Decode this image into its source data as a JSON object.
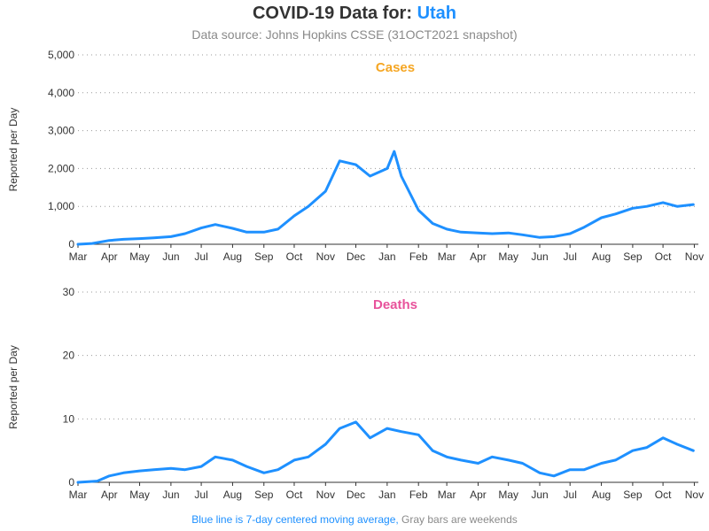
{
  "header": {
    "title_prefix": "COVID-19 Data for:",
    "state": "Utah",
    "subtitle": "Data source: Johns Hopkins CSSE (31OCT2021 snapshot)"
  },
  "footnote": {
    "blue_text": "Blue line is 7-day centered moving average,",
    "gray_text": " Gray bars are weekends"
  },
  "colors": {
    "cases": "#f5a623",
    "cases_bar": "#f7c77a",
    "deaths": "#e8529b",
    "deaths_bar": "#ee7fb6",
    "average": "#1e90ff",
    "marker": "#777777"
  },
  "chart_data": [
    {
      "type": "bar",
      "title": "Cases",
      "ylabel": "Reported per Day",
      "ylim": [
        0,
        5000
      ],
      "yticks": [
        "0",
        "1,000",
        "2,000",
        "3,000",
        "4,000",
        "5,000"
      ],
      "ytick_values": [
        0,
        1000,
        2000,
        3000,
        4000,
        5000
      ],
      "xlim": [
        "2020-03-01",
        "2021-11-05"
      ],
      "xticks": [
        "Mar",
        "Apr",
        "May",
        "Jun",
        "Jul",
        "Aug",
        "Sep",
        "Oct",
        "Nov",
        "Dec",
        "Jan",
        "Feb",
        "Mar",
        "Apr",
        "May",
        "Jun",
        "Jul",
        "Aug",
        "Sep",
        "Oct",
        "Nov"
      ],
      "xtick_dates": [
        "2020-03-01",
        "2020-04-01",
        "2020-05-01",
        "2020-06-01",
        "2020-07-01",
        "2020-08-01",
        "2020-09-01",
        "2020-10-01",
        "2020-11-01",
        "2020-12-01",
        "2021-01-01",
        "2021-02-01",
        "2021-03-01",
        "2021-04-01",
        "2021-05-01",
        "2021-06-01",
        "2021-07-01",
        "2021-08-01",
        "2021-09-01",
        "2021-10-01",
        "2021-11-01"
      ],
      "grid": "horizontal-dotted",
      "series": [
        {
          "name": "7-day centered moving average",
          "x": [
            "2020-03-01",
            "2020-03-15",
            "2020-04-01",
            "2020-04-15",
            "2020-05-01",
            "2020-05-15",
            "2020-06-01",
            "2020-06-15",
            "2020-07-01",
            "2020-07-15",
            "2020-08-01",
            "2020-08-15",
            "2020-09-01",
            "2020-09-15",
            "2020-10-01",
            "2020-10-15",
            "2020-11-01",
            "2020-11-15",
            "2020-12-01",
            "2020-12-15",
            "2021-01-01",
            "2021-01-08",
            "2021-01-15",
            "2021-02-01",
            "2021-02-15",
            "2021-03-01",
            "2021-03-15",
            "2021-04-01",
            "2021-04-15",
            "2021-05-01",
            "2021-05-15",
            "2021-06-01",
            "2021-06-15",
            "2021-07-01",
            "2021-07-15",
            "2021-08-01",
            "2021-08-15",
            "2021-09-01",
            "2021-09-15",
            "2021-10-01",
            "2021-10-15",
            "2021-10-31"
          ],
          "values": [
            0,
            20,
            100,
            130,
            150,
            170,
            200,
            280,
            430,
            520,
            420,
            320,
            320,
            400,
            750,
            1000,
            1400,
            2200,
            2100,
            1800,
            2000,
            2450,
            1800,
            900,
            550,
            400,
            320,
            300,
            280,
            300,
            250,
            180,
            200,
            280,
            450,
            700,
            800,
            950,
            1000,
            1100,
            1000,
            1050
          ]
        }
      ]
    },
    {
      "type": "bar",
      "title": "Deaths",
      "ylabel": "Reported per Day",
      "ylim": [
        0,
        30
      ],
      "yticks": [
        "0",
        "10",
        "20",
        "30"
      ],
      "ytick_values": [
        0,
        10,
        20,
        30
      ],
      "xlim": [
        "2020-03-01",
        "2021-11-05"
      ],
      "xticks": [
        "Mar",
        "Apr",
        "May",
        "Jun",
        "Jul",
        "Aug",
        "Sep",
        "Oct",
        "Nov",
        "Dec",
        "Jan",
        "Feb",
        "Mar",
        "Apr",
        "May",
        "Jun",
        "Jul",
        "Aug",
        "Sep",
        "Oct",
        "Nov"
      ],
      "xtick_dates": [
        "2020-03-01",
        "2020-04-01",
        "2020-05-01",
        "2020-06-01",
        "2020-07-01",
        "2020-08-01",
        "2020-09-01",
        "2020-10-01",
        "2020-11-01",
        "2020-12-01",
        "2021-01-01",
        "2021-02-01",
        "2021-03-01",
        "2021-04-01",
        "2021-05-01",
        "2021-06-01",
        "2021-07-01",
        "2021-08-01",
        "2021-09-01",
        "2021-10-01",
        "2021-11-01"
      ],
      "grid": "horizontal-dotted",
      "series": [
        {
          "name": "7-day centered moving average",
          "x": [
            "2020-03-01",
            "2020-03-20",
            "2020-04-01",
            "2020-04-15",
            "2020-05-01",
            "2020-05-15",
            "2020-06-01",
            "2020-06-15",
            "2020-07-01",
            "2020-07-15",
            "2020-08-01",
            "2020-08-15",
            "2020-09-01",
            "2020-09-15",
            "2020-10-01",
            "2020-10-15",
            "2020-11-01",
            "2020-11-15",
            "2020-12-01",
            "2020-12-15",
            "2021-01-01",
            "2021-01-15",
            "2021-02-01",
            "2021-02-15",
            "2021-03-01",
            "2021-03-15",
            "2021-04-01",
            "2021-04-15",
            "2021-05-01",
            "2021-05-15",
            "2021-06-01",
            "2021-06-15",
            "2021-07-01",
            "2021-07-15",
            "2021-08-01",
            "2021-08-15",
            "2021-09-01",
            "2021-09-15",
            "2021-10-01",
            "2021-10-15",
            "2021-10-31"
          ],
          "values": [
            0,
            0.2,
            1.0,
            1.5,
            1.8,
            2.0,
            2.2,
            2.0,
            2.5,
            4.0,
            3.5,
            2.5,
            1.5,
            2.0,
            3.5,
            4.0,
            6.0,
            8.5,
            9.5,
            7.0,
            8.5,
            8.0,
            7.5,
            5.0,
            4.0,
            3.5,
            3.0,
            4.0,
            3.5,
            3.0,
            1.5,
            1.0,
            2.0,
            2.0,
            3.0,
            3.5,
            5.0,
            5.5,
            7.0,
            6.0,
            5.0
          ]
        }
      ]
    }
  ]
}
